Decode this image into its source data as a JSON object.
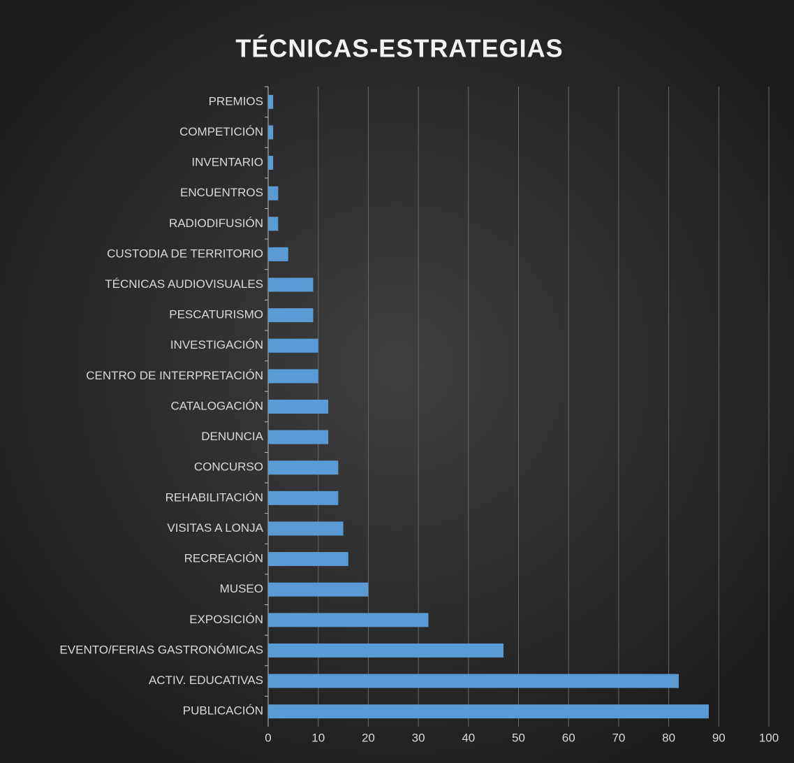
{
  "chart_data": {
    "type": "bar",
    "orientation": "horizontal",
    "title": "TÉCNICAS-ESTRATEGIAS",
    "categories": [
      "PREMIOS",
      "COMPETICIÓN",
      "INVENTARIO",
      "ENCUENTROS",
      "RADIODIFUSIÓN",
      "CUSTODIA DE TERRITORIO",
      "TÉCNICAS AUDIOVISUALES",
      "PESCATURISMO",
      "INVESTIGACIÓN",
      "CENTRO DE INTERPRETACIÓN",
      "CATALOGACIÓN",
      "DENUNCIA",
      "CONCURSO",
      "REHABILITACIÓN",
      "VISITAS A LONJA",
      "RECREACIÓN",
      "MUSEO",
      "EXPOSICIÓN",
      "EVENTO/FERIAS GASTRONÓMICAS",
      "ACTIV. EDUCATIVAS",
      "PUBLICACIÓN"
    ],
    "values": [
      1,
      1,
      1,
      2,
      2,
      4,
      9,
      9,
      10,
      10,
      12,
      12,
      14,
      14,
      15,
      16,
      20,
      32,
      47,
      82,
      88
    ],
    "color": "#5b9bd5",
    "xlim": [
      0,
      100
    ],
    "xticks": [
      0,
      10,
      20,
      30,
      40,
      50,
      60,
      70,
      80,
      90,
      100
    ],
    "grid": true
  }
}
